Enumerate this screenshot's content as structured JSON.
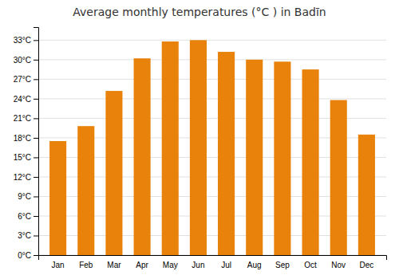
{
  "chart_data": {
    "type": "bar",
    "title": "Average monthly temperatures (°C ) in Badīn",
    "categories": [
      "Jan",
      "Feb",
      "Mar",
      "Apr",
      "May",
      "Jun",
      "Jul",
      "Aug",
      "Sep",
      "Oct",
      "Nov",
      "Dec"
    ],
    "values": [
      17.5,
      19.8,
      25.2,
      30.2,
      32.8,
      33.0,
      31.2,
      30.0,
      29.7,
      28.5,
      23.8,
      18.5
    ],
    "color": "#E8820A",
    "ylim": [
      0,
      35
    ],
    "yticks": [
      {
        "value": 0,
        "label": "0°C"
      },
      {
        "value": 3,
        "label": "3°C"
      },
      {
        "value": 6,
        "label": "6°C"
      },
      {
        "value": 9,
        "label": "9°C"
      },
      {
        "value": 12,
        "label": "12°C"
      },
      {
        "value": 15,
        "label": "15°C"
      },
      {
        "value": 18,
        "label": "18°C"
      },
      {
        "value": 21,
        "label": "21°C"
      },
      {
        "value": 24,
        "label": "24°C"
      },
      {
        "value": 27,
        "label": "27°C"
      },
      {
        "value": 30,
        "label": "30°C"
      },
      {
        "value": 33,
        "label": "33°C"
      }
    ],
    "grid": true
  }
}
